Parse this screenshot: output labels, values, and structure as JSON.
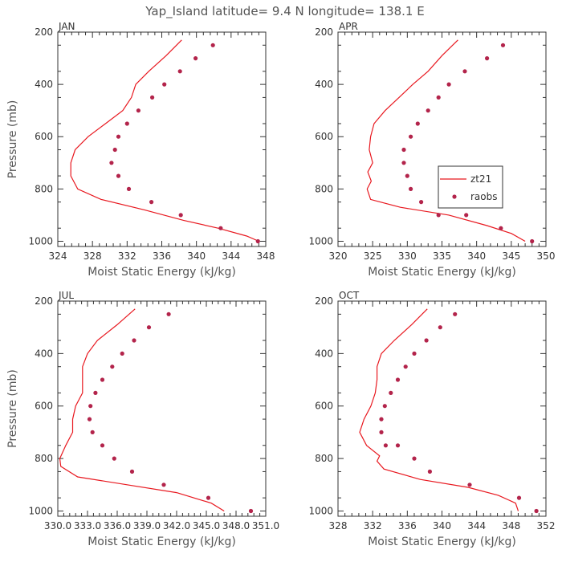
{
  "figure": {
    "title": "Yap_Island  latitude= 9.4 N longitude= 138.1 E"
  },
  "legend": {
    "line_label": "zt21",
    "marker_label": "raobs",
    "line_color": "#e8181f",
    "marker_color": "#b3244b"
  },
  "chart_data": [
    {
      "type": "line",
      "title": "JAN",
      "xlabel": "Moist Static Energy (kJ/kg)",
      "ylabel": "Pressure (mb)",
      "xlim": [
        324,
        348
      ],
      "ylim": [
        1020,
        200
      ],
      "xticks": [
        "324",
        "328",
        "332",
        "336",
        "340",
        "344",
        "348"
      ],
      "yticks": [
        "200",
        "400",
        "600",
        "800",
        "1000"
      ],
      "series": [
        {
          "name": "zt21",
          "style": "line",
          "x": [
            338.3,
            336.5,
            334.5,
            333.0,
            332.5,
            331.5,
            329.5,
            327.5,
            326.0,
            325.5,
            325.5,
            326.3,
            329.0,
            334.0,
            338.5,
            342.5,
            345.8,
            347.2
          ],
          "y": [
            230,
            290,
            350,
            400,
            450,
            500,
            550,
            600,
            650,
            700,
            750,
            800,
            840,
            880,
            920,
            950,
            980,
            1000
          ]
        },
        {
          "name": "raobs",
          "style": "marker",
          "x": [
            341.9,
            339.9,
            338.1,
            336.3,
            334.9,
            333.3,
            332.0,
            331.0,
            330.6,
            330.2,
            331.0,
            332.2,
            334.8,
            338.2,
            342.8,
            347.1
          ],
          "y": [
            250,
            300,
            350,
            400,
            450,
            500,
            550,
            600,
            650,
            700,
            750,
            800,
            850,
            900,
            950,
            1000
          ]
        }
      ]
    },
    {
      "type": "line",
      "title": "APR",
      "xlabel": "Moist Static Energy (kJ/kg)",
      "ylabel": "",
      "xlim": [
        320,
        350
      ],
      "ylim": [
        1020,
        200
      ],
      "xticks": [
        "320",
        "325",
        "330",
        "335",
        "340",
        "345",
        "350"
      ],
      "yticks": [
        "200",
        "400",
        "600",
        "800",
        "1000"
      ],
      "series": [
        {
          "name": "zt21",
          "style": "line",
          "x": [
            337.3,
            335.0,
            333.0,
            330.8,
            328.8,
            326.8,
            325.2,
            324.7,
            324.5,
            325.0,
            324.3,
            324.8,
            324.2,
            324.7,
            329.0,
            336.0,
            341.5,
            345.0,
            347.0
          ],
          "y": [
            230,
            290,
            350,
            400,
            450,
            500,
            550,
            600,
            650,
            700,
            735,
            770,
            800,
            840,
            870,
            900,
            940,
            970,
            1000
          ]
        },
        {
          "name": "raobs",
          "style": "marker",
          "x": [
            343.8,
            341.5,
            338.3,
            336.0,
            334.5,
            333.0,
            331.5,
            330.5,
            329.5,
            329.5,
            330.0,
            330.5,
            332.0,
            334.5,
            338.5,
            343.5,
            348.0
          ],
          "y": [
            250,
            300,
            350,
            400,
            450,
            500,
            550,
            600,
            650,
            700,
            750,
            800,
            850,
            900,
            900,
            950,
            1000
          ]
        }
      ]
    },
    {
      "type": "line",
      "title": "JUL",
      "xlabel": "Moist Static Energy (kJ/kg)",
      "ylabel": "Pressure (mb)",
      "xlim": [
        330.0,
        351.0
      ],
      "ylim": [
        1020,
        200
      ],
      "xticks": [
        "330.0",
        "333.0",
        "336.0",
        "339.0",
        "342.0",
        "345.0",
        "348.0",
        "351.0"
      ],
      "yticks": [
        "200",
        "400",
        "600",
        "800",
        "1000"
      ],
      "series": [
        {
          "name": "zt21",
          "style": "line",
          "x": [
            337.8,
            336.0,
            334.0,
            333.0,
            332.5,
            332.5,
            332.5,
            331.8,
            331.5,
            331.5,
            330.8,
            330.2,
            330.3,
            332.0,
            337.0,
            342.0,
            345.5,
            346.8
          ],
          "y": [
            230,
            290,
            350,
            400,
            450,
            500,
            550,
            600,
            650,
            700,
            750,
            800,
            830,
            870,
            900,
            930,
            970,
            1000
          ]
        },
        {
          "name": "raobs",
          "style": "marker",
          "x": [
            341.2,
            339.2,
            337.7,
            336.5,
            335.5,
            334.5,
            333.8,
            333.3,
            333.2,
            333.5,
            334.5,
            335.7,
            337.5,
            340.7,
            345.2,
            349.5
          ],
          "y": [
            250,
            300,
            350,
            400,
            450,
            500,
            550,
            600,
            650,
            700,
            750,
            800,
            850,
            900,
            950,
            1000
          ]
        }
      ]
    },
    {
      "type": "line",
      "title": "OCT",
      "xlabel": "Moist Static Energy (kJ/kg)",
      "ylabel": "",
      "xlim": [
        328,
        352
      ],
      "ylim": [
        1020,
        200
      ],
      "xticks": [
        "328",
        "332",
        "336",
        "340",
        "344",
        "348",
        "352"
      ],
      "yticks": [
        "200",
        "400",
        "600",
        "800",
        "1000"
      ],
      "series": [
        {
          "name": "zt21",
          "style": "line",
          "x": [
            338.3,
            336.5,
            334.5,
            333.0,
            332.5,
            332.5,
            332.3,
            331.8,
            331.0,
            330.5,
            331.3,
            332.8,
            332.5,
            333.3,
            337.5,
            343.0,
            346.5,
            348.5,
            348.8
          ],
          "y": [
            230,
            290,
            350,
            400,
            450,
            500,
            550,
            600,
            650,
            700,
            750,
            790,
            810,
            840,
            880,
            910,
            940,
            970,
            1000
          ]
        },
        {
          "name": "raobs",
          "style": "marker",
          "x": [
            341.5,
            339.8,
            338.2,
            336.8,
            335.8,
            334.9,
            334.1,
            333.4,
            333.0,
            333.0,
            333.5,
            334.9,
            336.8,
            338.6,
            343.2,
            348.9,
            350.9
          ],
          "y": [
            250,
            300,
            350,
            400,
            450,
            500,
            550,
            600,
            650,
            700,
            750,
            750,
            800,
            850,
            900,
            950,
            1000
          ]
        }
      ]
    }
  ]
}
